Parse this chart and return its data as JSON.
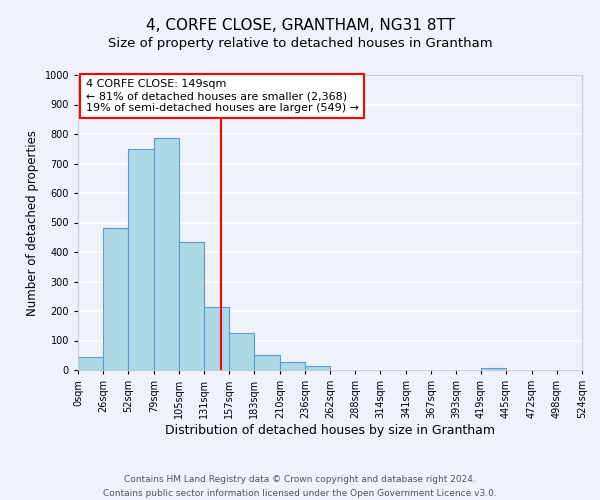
{
  "title": "4, CORFE CLOSE, GRANTHAM, NG31 8TT",
  "subtitle": "Size of property relative to detached houses in Grantham",
  "xlabel": "Distribution of detached houses by size in Grantham",
  "ylabel": "Number of detached properties",
  "bin_edges": [
    0,
    26,
    52,
    79,
    105,
    131,
    157,
    183,
    210,
    236,
    262,
    288,
    314,
    341,
    367,
    393,
    419,
    445,
    472,
    498,
    524
  ],
  "bar_heights": [
    45,
    480,
    750,
    785,
    435,
    215,
    125,
    52,
    27,
    13,
    0,
    0,
    0,
    0,
    0,
    0,
    7,
    0,
    0,
    0
  ],
  "bar_color": "#add8e6",
  "bar_edge_color": "#5b9bd5",
  "property_line_x": 149,
  "property_line_color": "red",
  "annotation_title": "4 CORFE CLOSE: 149sqm",
  "annotation_line1": "← 81% of detached houses are smaller (2,368)",
  "annotation_line2": "19% of semi-detached houses are larger (549) →",
  "annotation_box_color": "white",
  "annotation_box_edge_color": "red",
  "ylim": [
    0,
    1000
  ],
  "yticks": [
    0,
    100,
    200,
    300,
    400,
    500,
    600,
    700,
    800,
    900,
    1000
  ],
  "tick_labels": [
    "0sqm",
    "26sqm",
    "52sqm",
    "79sqm",
    "105sqm",
    "131sqm",
    "157sqm",
    "183sqm",
    "210sqm",
    "236sqm",
    "262sqm",
    "288sqm",
    "314sqm",
    "341sqm",
    "367sqm",
    "393sqm",
    "419sqm",
    "445sqm",
    "472sqm",
    "498sqm",
    "524sqm"
  ],
  "footnote1": "Contains HM Land Registry data © Crown copyright and database right 2024.",
  "footnote2": "Contains public sector information licensed under the Open Government Licence v3.0.",
  "background_color": "#eef2fb",
  "grid_color": "white",
  "title_fontsize": 11,
  "subtitle_fontsize": 9.5,
  "xlabel_fontsize": 9,
  "ylabel_fontsize": 8.5,
  "tick_fontsize": 7,
  "annotation_fontsize": 8,
  "footnote_fontsize": 6.5
}
